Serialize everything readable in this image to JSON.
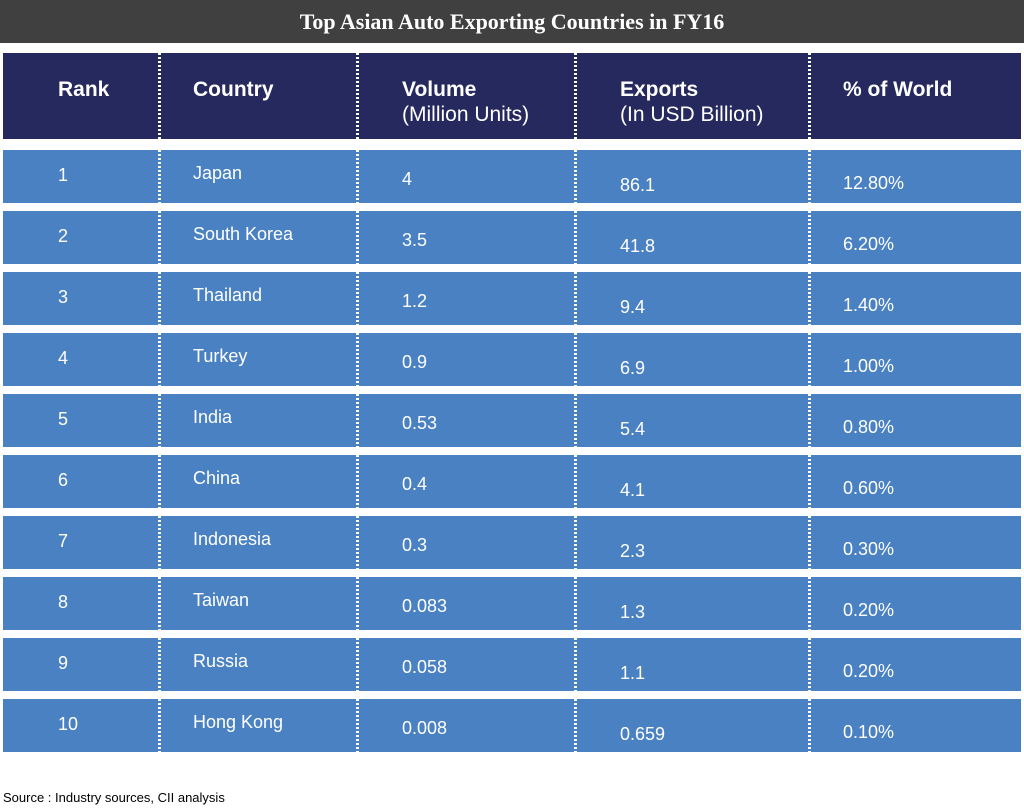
{
  "chart_data": {
    "type": "table",
    "title": "Top Asian Auto Exporting Countries in FY16",
    "columns": [
      {
        "main": "Rank",
        "sub": ""
      },
      {
        "main": "Country",
        "sub": ""
      },
      {
        "main": "Volume",
        "sub": "(Million Units)"
      },
      {
        "main": "Exports",
        "sub": "(In USD Billion)"
      },
      {
        "main": "% of World",
        "sub": ""
      }
    ],
    "rows": [
      {
        "rank": "1",
        "country": "Japan",
        "volume": "4",
        "exports": "86.1",
        "world": "12.80%"
      },
      {
        "rank": "2",
        "country": "South Korea",
        "volume": "3.5",
        "exports": "41.8",
        "world": "6.20%"
      },
      {
        "rank": "3",
        "country": "Thailand",
        "volume": "1.2",
        "exports": "9.4",
        "world": "1.40%"
      },
      {
        "rank": "4",
        "country": "Turkey",
        "volume": "0.9",
        "exports": "6.9",
        "world": "1.00%"
      },
      {
        "rank": "5",
        "country": "India",
        "volume": "0.53",
        "exports": "5.4",
        "world": "0.80%"
      },
      {
        "rank": "6",
        "country": "China",
        "volume": "0.4",
        "exports": "4.1",
        "world": "0.60%"
      },
      {
        "rank": "7",
        "country": "Indonesia",
        "volume": "0.3",
        "exports": "2.3",
        "world": "0.30%"
      },
      {
        "rank": "8",
        "country": "Taiwan",
        "volume": "0.083",
        "exports": "1.3",
        "world": "0.20%"
      },
      {
        "rank": "9",
        "country": "Russia",
        "volume": "0.058",
        "exports": "1.1",
        "world": "0.20%"
      },
      {
        "rank": "10",
        "country": "Hong Kong",
        "volume": "0.008",
        "exports": "0.659",
        "world": "0.10%"
      }
    ],
    "source": "Source : Industry sources, CII analysis"
  },
  "colors": {
    "title_bg": "#404040",
    "header_bg": "#26295e",
    "row_bg": "#4a81c2",
    "text": "#ffffff"
  }
}
